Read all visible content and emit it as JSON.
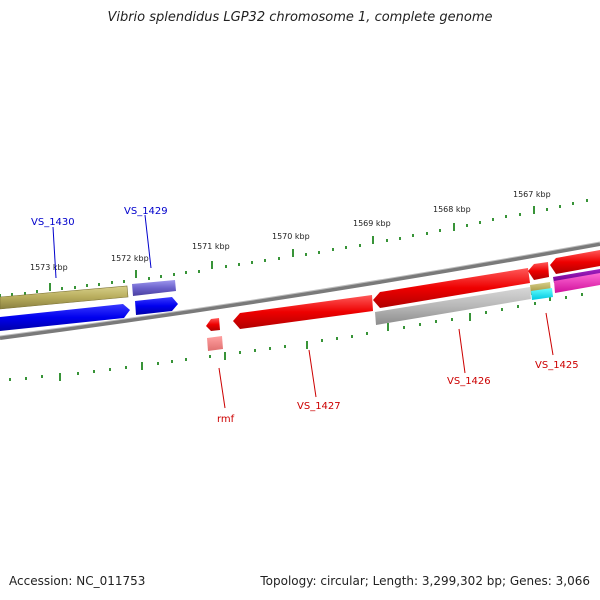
{
  "title": "Vibrio splendidus LGP32 chromosome 1, complete genome",
  "footer": {
    "accession": "Accession: NC_011753",
    "topology": "Topology: circular; Length: 3,299,302 bp; Genes: 3,066"
  },
  "colors": {
    "forward_label": "#0000cc",
    "reverse_label": "#cc0000",
    "tick": "#228822",
    "backbone": "#888888"
  },
  "ticks": [
    {
      "label": "1573 kbp"
    },
    {
      "label": "1572 kbp"
    },
    {
      "label": "1571 kbp"
    },
    {
      "label": "1570 kbp"
    },
    {
      "label": "1569 kbp"
    },
    {
      "label": "1568 kbp"
    },
    {
      "label": "1567 kbp"
    }
  ],
  "genes": [
    {
      "id": "VS_1430",
      "label": "VS_1430",
      "strand": "forward",
      "color": "#0000ee"
    },
    {
      "id": "VS_1429",
      "label": "VS_1429",
      "strand": "forward",
      "color": "#0000ee"
    },
    {
      "id": "rmf",
      "label": "rmf",
      "strand": "reverse",
      "color": "#ee0000"
    },
    {
      "id": "VS_1427",
      "label": "VS_1427",
      "strand": "reverse",
      "color": "#ee0000"
    },
    {
      "id": "VS_1426",
      "label": "VS_1426",
      "strand": "reverse",
      "color": "#ee0000"
    },
    {
      "id": "VS_1425",
      "label": "VS_1425",
      "strand": "reverse",
      "color": "#ee0000"
    }
  ]
}
